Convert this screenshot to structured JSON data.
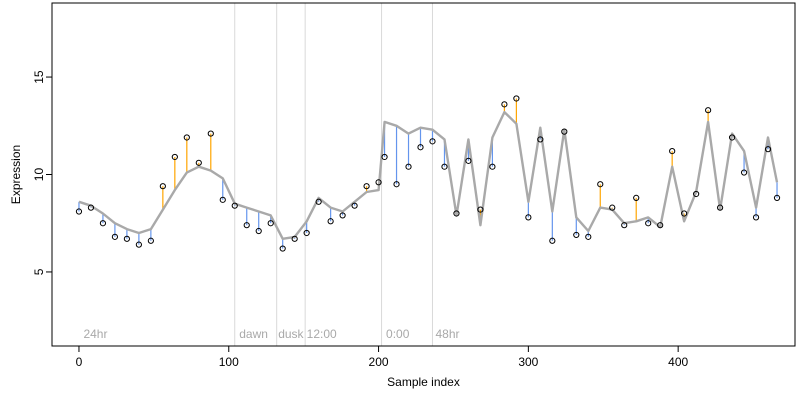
{
  "chart_data": {
    "type": "line",
    "title": "",
    "xlabel": "Sample index",
    "ylabel": "Expression",
    "xlim": [
      -18,
      478
    ],
    "ylim": [
      1.2,
      18.8
    ],
    "x_ticks": [
      0,
      100,
      200,
      300,
      400
    ],
    "y_ticks": [
      5,
      10,
      15
    ],
    "grid": false,
    "legend": "none",
    "region_boundaries": [
      104,
      132,
      151,
      202,
      236
    ],
    "region_labels": [
      {
        "label": "24hr",
        "x": 3
      },
      {
        "label": "dawn",
        "x": 107
      },
      {
        "label": "dusk",
        "x": 133
      },
      {
        "label": "12:00",
        "x": 152
      },
      {
        "label": "0:00",
        "x": 205
      },
      {
        "label": "48hr",
        "x": 238
      }
    ],
    "colors": {
      "fitted_line": "#a9a9a9",
      "residual_positive": "#ffa500",
      "residual_negative": "#6495ed",
      "points_edge": "#000000",
      "boundary_line": "#d9d9d9",
      "region_text": "#a9a9a9"
    },
    "series": [
      {
        "kind": "fitted",
        "x": [
          0,
          8,
          16,
          24,
          32,
          40,
          48,
          56,
          64,
          72,
          80,
          88,
          96,
          104,
          112,
          120,
          128,
          136,
          144,
          152,
          160,
          168,
          176,
          184,
          192,
          200,
          204,
          212,
          220,
          228,
          236,
          244,
          252,
          260,
          268,
          276,
          284,
          292,
          300,
          308,
          316,
          324,
          332,
          340,
          348,
          356,
          364,
          372,
          380,
          388,
          396,
          404,
          412,
          420,
          428,
          436,
          444,
          452,
          460,
          466
        ],
        "y": [
          8.6,
          8.4,
          8.0,
          7.5,
          7.2,
          7.0,
          7.2,
          8.2,
          9.2,
          10.1,
          10.4,
          10.2,
          9.8,
          8.5,
          8.3,
          8.1,
          7.9,
          6.7,
          6.8,
          7.6,
          8.8,
          8.3,
          8.1,
          8.6,
          9.1,
          9.2,
          12.7,
          12.5,
          12.1,
          12.4,
          12.3,
          11.8,
          7.9,
          11.8,
          7.4,
          11.9,
          13.2,
          12.6,
          8.6,
          12.4,
          8.1,
          12.3,
          7.8,
          7.1,
          8.3,
          8.2,
          7.5,
          7.6,
          7.8,
          7.3,
          10.4,
          7.6,
          9.1,
          12.7,
          8.2,
          12.1,
          11.2,
          8.3,
          11.9,
          9.6
        ]
      },
      {
        "kind": "observed",
        "x": [
          0,
          8,
          16,
          24,
          32,
          40,
          48,
          56,
          64,
          72,
          80,
          88,
          96,
          104,
          112,
          120,
          128,
          136,
          144,
          152,
          160,
          168,
          176,
          184,
          192,
          200,
          204,
          212,
          220,
          228,
          236,
          244,
          252,
          260,
          268,
          276,
          284,
          292,
          300,
          308,
          316,
          324,
          332,
          340,
          348,
          356,
          364,
          372,
          380,
          388,
          396,
          404,
          412,
          420,
          428,
          436,
          444,
          452,
          460,
          466
        ],
        "y": [
          8.1,
          8.3,
          7.5,
          6.8,
          6.7,
          6.4,
          6.6,
          9.4,
          10.9,
          11.9,
          10.6,
          12.1,
          8.7,
          8.4,
          7.4,
          7.1,
          7.5,
          6.2,
          6.7,
          7.0,
          8.6,
          7.6,
          7.9,
          8.4,
          9.4,
          9.6,
          10.9,
          9.5,
          10.4,
          11.4,
          11.7,
          10.4,
          8.0,
          10.7,
          8.2,
          10.4,
          13.6,
          13.9,
          7.8,
          11.8,
          6.6,
          12.2,
          6.9,
          6.8,
          9.5,
          8.3,
          7.4,
          8.8,
          7.5,
          7.4,
          11.2,
          8.0,
          9.0,
          13.3,
          8.3,
          11.9,
          10.1,
          7.8,
          11.3,
          8.8
        ]
      }
    ]
  }
}
